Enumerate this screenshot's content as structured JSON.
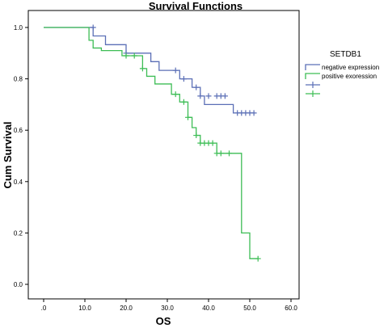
{
  "chart_data": {
    "type": "line",
    "step": true,
    "title": "Survival Functions",
    "xlabel": "OS",
    "ylabel": "Cum Survival",
    "xlim": [
      0,
      60
    ],
    "ylim": [
      0,
      1
    ],
    "xticks": [
      0,
      10,
      20,
      30,
      40,
      50,
      60
    ],
    "xtick_labels": [
      ".0",
      "10.0",
      "20.0",
      "30.0",
      "40.0",
      "50.0",
      "60.0"
    ],
    "yticks": [
      0,
      0.2,
      0.4,
      0.6,
      0.8,
      1.0
    ],
    "ytick_labels": [
      "0.0",
      "0.2",
      "0.4",
      "0.6",
      "0.8",
      "1.0"
    ],
    "grid": false,
    "legend": {
      "title": "SETDB1",
      "placement": "right",
      "entries": [
        "negative expression",
        "positive exoression",
        "",
        ""
      ]
    },
    "series": [
      {
        "name": "negative expression",
        "color": "#5b6fb6",
        "steps": [
          [
            0,
            1.0
          ],
          [
            12,
            0.967
          ],
          [
            15,
            0.933
          ],
          [
            20,
            0.9
          ],
          [
            26,
            0.867
          ],
          [
            28,
            0.833
          ],
          [
            33,
            0.8
          ],
          [
            36,
            0.767
          ],
          [
            38,
            0.733
          ],
          [
            39,
            0.7
          ],
          [
            46,
            0.667
          ],
          [
            51,
            0.667
          ]
        ],
        "censored": [
          [
            12,
            1.0
          ],
          [
            20,
            0.9
          ],
          [
            32,
            0.833
          ],
          [
            34,
            0.8
          ],
          [
            37,
            0.767
          ],
          [
            38,
            0.733
          ],
          [
            40,
            0.733
          ],
          [
            42,
            0.733
          ],
          [
            43,
            0.733
          ],
          [
            44,
            0.733
          ],
          [
            47,
            0.667
          ],
          [
            48,
            0.667
          ],
          [
            49,
            0.667
          ],
          [
            50,
            0.667
          ],
          [
            51,
            0.667
          ]
        ]
      },
      {
        "name": "positive exoression",
        "color": "#3dbd55",
        "steps": [
          [
            0,
            1.0
          ],
          [
            11,
            0.95
          ],
          [
            12,
            0.92
          ],
          [
            14,
            0.91
          ],
          [
            19,
            0.89
          ],
          [
            24,
            0.84
          ],
          [
            25,
            0.81
          ],
          [
            27,
            0.78
          ],
          [
            31,
            0.74
          ],
          [
            33,
            0.71
          ],
          [
            35,
            0.65
          ],
          [
            36,
            0.61
          ],
          [
            37,
            0.58
          ],
          [
            38,
            0.55
          ],
          [
            42,
            0.51
          ],
          [
            48,
            0.2
          ],
          [
            50,
            0.1
          ],
          [
            52,
            0.1
          ]
        ],
        "censored": [
          [
            20,
            0.89
          ],
          [
            22,
            0.89
          ],
          [
            24,
            0.84
          ],
          [
            32,
            0.74
          ],
          [
            34,
            0.71
          ],
          [
            35,
            0.65
          ],
          [
            37,
            0.58
          ],
          [
            38,
            0.55
          ],
          [
            39,
            0.55
          ],
          [
            40,
            0.55
          ],
          [
            41,
            0.55
          ],
          [
            42,
            0.51
          ],
          [
            43,
            0.51
          ],
          [
            45,
            0.51
          ],
          [
            52,
            0.1
          ]
        ]
      }
    ]
  }
}
